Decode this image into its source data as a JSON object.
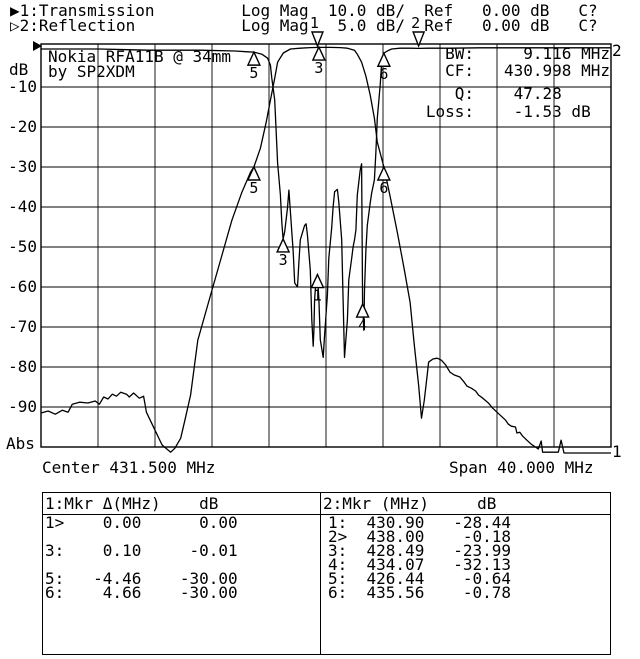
{
  "header": {
    "line1": "▶1:Transmission         Log Mag  10.0 dB/  Ref   0.00 dB   C?",
    "line2": "▷2:Reflection           Log Mag   5.0 dB/  Ref   0.00 dB   C?"
  },
  "device_title": {
    "line1": "Nokia RFA11B @ 34mm",
    "line2": "by SP2XDM"
  },
  "y_axis": {
    "unit": "dB",
    "ticks": [
      "-10",
      "-20",
      "-30",
      "-40",
      "-50",
      "-60",
      "-70",
      "-80",
      "-90"
    ],
    "bottom_label": "Abs"
  },
  "x_axis": {
    "center_label": "Center 431.500 MHz",
    "span_label": "Span 40.000 MHz"
  },
  "edge_indicators": {
    "top_right": "2",
    "bottom_right": "1"
  },
  "stats": {
    "rows": [
      {
        "label": "BW:",
        "value": "  9.116 MHz"
      },
      {
        "label": "CF:",
        "value": "430.998 MHz"
      },
      {
        "label": "Q:",
        "value": " 47.28"
      },
      {
        "label": "Loss:",
        "value": " -1.53 dB"
      }
    ]
  },
  "marker_tables": {
    "left": {
      "header": "1:Mkr Δ(MHz)    dB",
      "rows": [
        "1>    0.00      0.00",
        "",
        "3:    0.10     -0.01",
        "",
        "5:   -4.46    -30.00",
        "6:    4.66    -30.00"
      ]
    },
    "right": {
      "header": "2:Mkr (MHz)     dB",
      "rows": [
        "1:  430.90   -28.44",
        "2>  438.00    -0.18",
        "3:  428.49   -23.99",
        "4:  434.07   -32.13",
        "5:  426.44    -0.64",
        "6:  435.56    -0.78"
      ]
    }
  },
  "chart_data": {
    "type": "line",
    "title": "Nokia RFA11B @ 34mm by SP2XDM",
    "xlabel": "Frequency (MHz), Center 431.500 MHz, Span 40.000 MHz",
    "ylabel": "dB (Abs)",
    "x_range": [
      411.5,
      451.5
    ],
    "grid_divisions": 10,
    "channel1": {
      "name": "Transmission",
      "format": "Log Mag",
      "db_per_div": 10,
      "ref_db": 0
    },
    "channel2": {
      "name": "Reflection",
      "format": "Log Mag",
      "db_per_div": 5,
      "ref_db": 0
    },
    "stats": {
      "BW_MHz": 9.116,
      "CF_MHz": 430.998,
      "Q": 47.28,
      "Loss_dB": -1.53
    },
    "series": [
      {
        "name": "transmission",
        "channel": 1,
        "points": [
          [
            411.5,
            -91.5
          ],
          [
            412.0,
            -91.0
          ],
          [
            412.5,
            -91.8
          ],
          [
            413.0,
            -90.8
          ],
          [
            413.4,
            -91.3
          ],
          [
            413.7,
            -89.3
          ],
          [
            414.2,
            -88.8
          ],
          [
            414.8,
            -89.0
          ],
          [
            415.3,
            -88.5
          ],
          [
            415.6,
            -89.3
          ],
          [
            415.9,
            -87.5
          ],
          [
            416.2,
            -88.0
          ],
          [
            416.5,
            -86.8
          ],
          [
            416.8,
            -87.3
          ],
          [
            417.1,
            -86.3
          ],
          [
            417.5,
            -86.8
          ],
          [
            417.7,
            -87.5
          ],
          [
            418.0,
            -86.5
          ],
          [
            418.4,
            -87.8
          ],
          [
            418.7,
            -87.3
          ],
          [
            418.9,
            -91.3
          ],
          [
            419.5,
            -95.8
          ],
          [
            420.0,
            -99.5
          ],
          [
            420.6,
            -101.3
          ],
          [
            420.9,
            -100.3
          ],
          [
            421.3,
            -97.8
          ],
          [
            421.6,
            -93.3
          ],
          [
            422.0,
            -87.0
          ],
          [
            422.5,
            -73.3
          ],
          [
            423.4,
            -62.0
          ],
          [
            424.2,
            -52.0
          ],
          [
            424.9,
            -43.3
          ],
          [
            425.6,
            -36.3
          ],
          [
            426.2,
            -31.3
          ],
          [
            426.44,
            -30.0
          ],
          [
            426.9,
            -25.3
          ],
          [
            427.3,
            -18.8
          ],
          [
            427.6,
            -13.3
          ],
          [
            427.9,
            -7.8
          ],
          [
            428.1,
            -3.8
          ],
          [
            428.5,
            -1.5
          ],
          [
            429.0,
            -0.5
          ],
          [
            429.7,
            -0.3
          ],
          [
            430.4,
            -0.15
          ],
          [
            431.1,
            -0.1
          ],
          [
            431.8,
            -0.1
          ],
          [
            432.5,
            -0.15
          ],
          [
            433.0,
            -0.3
          ],
          [
            433.5,
            -0.8
          ],
          [
            433.7,
            -1.8
          ],
          [
            434.0,
            -3.8
          ],
          [
            434.3,
            -7.3
          ],
          [
            434.6,
            -12.0
          ],
          [
            434.9,
            -17.8
          ],
          [
            435.1,
            -23.8
          ],
          [
            435.56,
            -30.0
          ],
          [
            436.0,
            -37.3
          ],
          [
            436.5,
            -46.3
          ],
          [
            437.0,
            -55.8
          ],
          [
            437.4,
            -63.8
          ],
          [
            437.7,
            -74.5
          ],
          [
            438.0,
            -84.5
          ],
          [
            438.2,
            -92.8
          ],
          [
            438.4,
            -88.3
          ],
          [
            438.6,
            -82.0
          ],
          [
            438.7,
            -78.8
          ],
          [
            439.0,
            -78.0
          ],
          [
            439.3,
            -77.8
          ],
          [
            439.6,
            -78.3
          ],
          [
            439.9,
            -79.5
          ],
          [
            440.2,
            -81.3
          ],
          [
            440.5,
            -82.0
          ],
          [
            440.9,
            -82.5
          ],
          [
            441.2,
            -83.8
          ],
          [
            441.4,
            -84.8
          ],
          [
            441.7,
            -85.3
          ],
          [
            442.0,
            -86.0
          ],
          [
            442.2,
            -87.0
          ],
          [
            442.5,
            -87.8
          ],
          [
            442.9,
            -89.0
          ],
          [
            443.2,
            -90.3
          ],
          [
            443.5,
            -91.3
          ],
          [
            443.8,
            -92.3
          ],
          [
            444.1,
            -93.3
          ],
          [
            444.3,
            -94.3
          ],
          [
            444.5,
            -94.8
          ],
          [
            444.8,
            -95.0
          ],
          [
            444.9,
            -96.5
          ],
          [
            445.1,
            -96.3
          ],
          [
            445.3,
            -97.3
          ],
          [
            445.6,
            -98.3
          ],
          [
            445.9,
            -99.3
          ],
          [
            446.2,
            -100.0
          ],
          [
            446.4,
            -100.5
          ],
          [
            446.6,
            -98.5
          ],
          [
            446.7,
            -101.3
          ],
          [
            447.1,
            -101.3
          ],
          [
            447.8,
            -101.3
          ],
          [
            448.0,
            -98.3
          ],
          [
            448.2,
            -101.5
          ],
          [
            449.0,
            -101.5
          ],
          [
            450.0,
            -101.5
          ],
          [
            451.5,
            -101.5
          ]
        ]
      },
      {
        "name": "reflection",
        "channel": 2,
        "points": [
          [
            411.5,
            -0.25
          ],
          [
            415.6,
            -0.25
          ],
          [
            419.1,
            -0.4
          ],
          [
            422.7,
            -0.4
          ],
          [
            425.1,
            -0.5
          ],
          [
            426.0,
            -0.6
          ],
          [
            426.44,
            -0.64
          ],
          [
            427.0,
            -0.9
          ],
          [
            427.4,
            -1.4
          ],
          [
            427.6,
            -2.25
          ],
          [
            427.7,
            -3.9
          ],
          [
            427.9,
            -6.6
          ],
          [
            428.0,
            -10.4
          ],
          [
            428.1,
            -14.5
          ],
          [
            428.3,
            -18.5
          ],
          [
            428.4,
            -21.9
          ],
          [
            428.49,
            -23.99
          ],
          [
            428.6,
            -23.1
          ],
          [
            428.8,
            -20.1
          ],
          [
            428.9,
            -17.9
          ],
          [
            429.0,
            -20.6
          ],
          [
            429.2,
            -25.6
          ],
          [
            429.3,
            -29.5
          ],
          [
            429.5,
            -30.0
          ],
          [
            429.6,
            -26.9
          ],
          [
            429.7,
            -24.1
          ],
          [
            430.0,
            -22.3
          ],
          [
            430.1,
            -22.1
          ],
          [
            430.2,
            -23.6
          ],
          [
            430.4,
            -27.9
          ],
          [
            430.5,
            -34.1
          ],
          [
            430.6,
            -37.4
          ],
          [
            430.65,
            -35.4
          ],
          [
            430.7,
            -31.6
          ],
          [
            430.8,
            -29.1
          ],
          [
            430.9,
            -28.44
          ],
          [
            431.0,
            -31.6
          ],
          [
            431.1,
            -36.6
          ],
          [
            431.3,
            -38.8
          ],
          [
            431.4,
            -36.0
          ],
          [
            431.6,
            -31.0
          ],
          [
            431.7,
            -26.4
          ],
          [
            431.9,
            -22.6
          ],
          [
            432.0,
            -20.0
          ],
          [
            432.1,
            -18.1
          ],
          [
            432.3,
            -17.8
          ],
          [
            432.4,
            -19.4
          ],
          [
            432.6,
            -24.1
          ],
          [
            432.7,
            -31.6
          ],
          [
            432.8,
            -38.8
          ],
          [
            433.0,
            -34.1
          ],
          [
            433.1,
            -29.1
          ],
          [
            433.3,
            -26.4
          ],
          [
            433.4,
            -25.0
          ],
          [
            433.5,
            -24.1
          ],
          [
            433.6,
            -22.9
          ],
          [
            433.7,
            -18.5
          ],
          [
            433.9,
            -15.4
          ],
          [
            434.0,
            -14.6
          ],
          [
            434.07,
            -32.13
          ],
          [
            434.15,
            -35.4
          ],
          [
            434.2,
            -30.4
          ],
          [
            434.3,
            -25.4
          ],
          [
            434.4,
            -22.3
          ],
          [
            434.6,
            -19.5
          ],
          [
            434.7,
            -18.3
          ],
          [
            434.9,
            -16.6
          ],
          [
            435.0,
            -13.1
          ],
          [
            435.1,
            -8.9
          ],
          [
            435.3,
            -4.75
          ],
          [
            435.4,
            -2.1
          ],
          [
            435.56,
            -0.78
          ],
          [
            435.8,
            -0.5
          ],
          [
            436.1,
            -0.25
          ],
          [
            436.7,
            -0.15
          ],
          [
            437.4,
            -0.15
          ],
          [
            438.0,
            -0.18
          ],
          [
            438.7,
            -0.15
          ],
          [
            440.2,
            -0.15
          ],
          [
            442.3,
            -0.1
          ],
          [
            445.1,
            -0.1
          ],
          [
            448.6,
            -0.1
          ],
          [
            451.5,
            -0.1
          ]
        ]
      }
    ],
    "markers": {
      "flags": [
        {
          "channel": 1,
          "label": "1",
          "freq": 430.9
        },
        {
          "channel": 2,
          "label": "2",
          "freq": 438.0
        }
      ],
      "triangles": [
        {
          "channel": 1,
          "label": "3",
          "freq": 431.0,
          "db": -0.01
        },
        {
          "channel": 1,
          "label": "5",
          "freq": 426.44,
          "db": -30.0
        },
        {
          "channel": 1,
          "label": "6",
          "freq": 435.56,
          "db": -30.0
        },
        {
          "channel": 2,
          "label": "5",
          "freq": 426.44,
          "db": -0.64
        },
        {
          "channel": 2,
          "label": "6",
          "freq": 435.56,
          "db": -0.78
        },
        {
          "channel": 2,
          "label": "3",
          "freq": 428.49,
          "db": -23.99
        },
        {
          "channel": 2,
          "label": "1",
          "freq": 430.9,
          "db": -28.44
        },
        {
          "channel": 2,
          "label": "4",
          "freq": 434.07,
          "db": -32.13
        }
      ]
    }
  }
}
